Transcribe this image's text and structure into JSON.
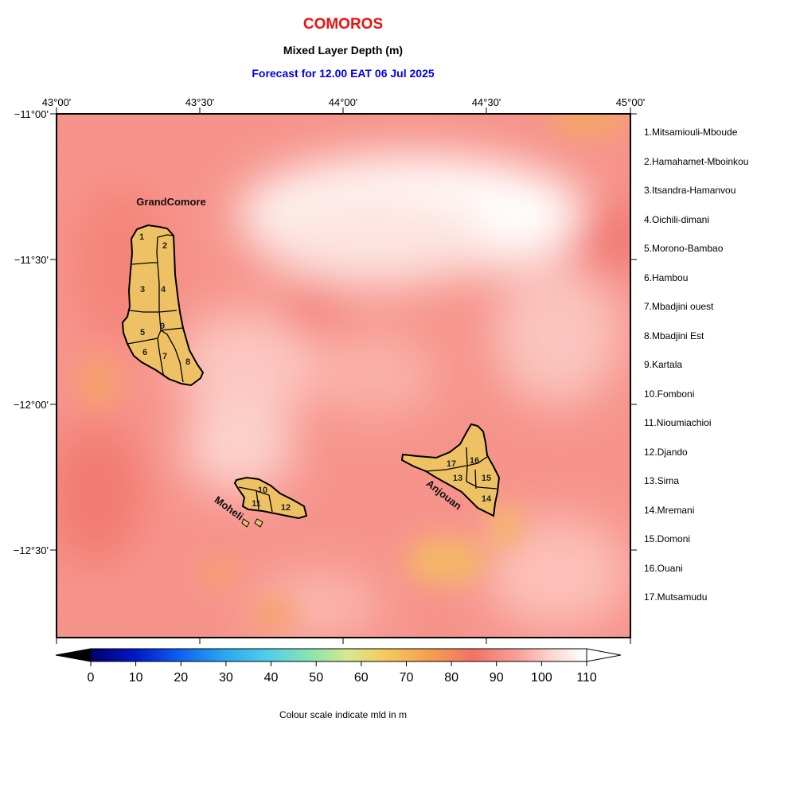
{
  "header": {
    "title": "COMOROS",
    "subtitle": "Mixed Layer Depth (m)",
    "forecast": "Forecast for  12.00 EAT 06 Jul 2025"
  },
  "colors": {
    "title": "#ee1111",
    "forecast": "#0000ee",
    "land": "#eec264",
    "sea_base": "#f59a90"
  },
  "map": {
    "lon_ticks": [
      "43°00'",
      "43°30'",
      "44°00'",
      "44°30'",
      "45°00'"
    ],
    "lat_ticks": [
      "−11°00'",
      "−11°30'",
      "−12°00'",
      "−12°30'"
    ],
    "island_labels": [
      "GrandComore",
      "Moheli",
      "Anjouan"
    ],
    "region_numbers": [
      "1",
      "2",
      "3",
      "4",
      "5",
      "6",
      "7",
      "8",
      "9",
      "10",
      "11",
      "12",
      "13",
      "14",
      "15",
      "16",
      "17"
    ]
  },
  "legend": {
    "items": [
      "1.Mitsamiouli-Mboude",
      "2.Hamahamet-Mboinkou",
      "3.Itsandra-Hamanvou",
      "4.Oichili-dimani",
      "5.Morono-Bambao",
      "6.Hambou",
      "7.Mbadjini ouest",
      "8.Mbadjini Est",
      "9.Kartala",
      "10.Fomboni",
      "11.Nioumiachioi",
      "12.Djando",
      "13.Sima",
      "14.Mremani",
      "15.Domoni",
      "16.Ouani",
      "17.Mutsamudu"
    ]
  },
  "colorbar": {
    "labels": [
      "0",
      "10",
      "20",
      "30",
      "40",
      "50",
      "60",
      "70",
      "80",
      "90",
      "100",
      "110"
    ],
    "caption": "Colour scale indicate mld in m"
  }
}
